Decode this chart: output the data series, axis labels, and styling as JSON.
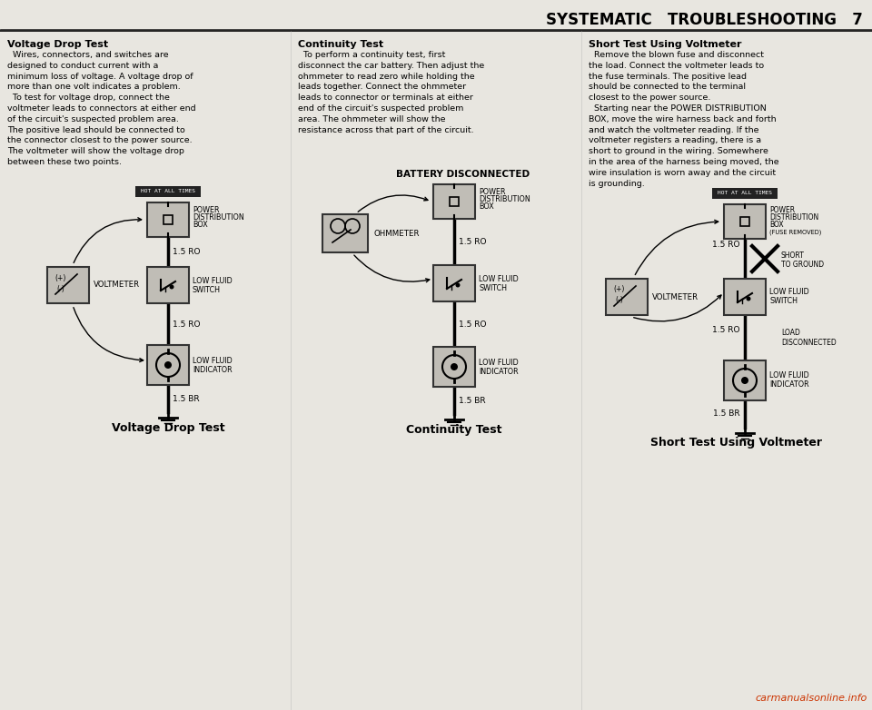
{
  "bg_color": "#e8e6e0",
  "title": "SYSTEMATIC   TROUBLESHOOTING   7",
  "col_titles": [
    "Voltage Drop Test",
    "Continuity Test",
    "Short Test Using Voltmeter"
  ],
  "body1": "  Wires, connectors, and switches are\ndesigned to conduct current with a\nminimum loss of voltage. A voltage drop of\nmore than one volt indicates a problem.\n  To test for voltage drop, connect the\nvoltmeter leads to connectors at either end\nof the circuit's suspected problem area.\nThe positive lead should be connected to\nthe connector closest to the power source.\nThe voltmeter will show the voltage drop\nbetween these two points.",
  "body2": "  To perform a continuity test, first\ndisconnect the car battery. Then adjust the\nohmmeter to read zero while holding the\nleads together. Connect the ohmmeter\nleads to connector or terminals at either\nend of the circuit's suspected problem\narea. The ohmmeter will show the\nresistance across that part of the circuit.",
  "body3": "  Remove the blown fuse and disconnect\nthe load. Connect the voltmeter leads to\nthe fuse terminals. The positive lead\nshould be connected to the terminal\nclosest to the power source.\n  Starting near the POWER DISTRIBUTION\nBOX, move the wire harness back and forth\nand watch the voltmeter reading. If the\nvoltmeter registers a reading, there is a\nshort to ground in the wiring. Somewhere\nin the area of the harness being moved, the\nwire insulation is worn away and the circuit\nis grounding.",
  "diag_labels": [
    "Voltage Drop Test",
    "Continuity Test",
    "Short Test Using Voltmeter"
  ],
  "battery_note": "BATTERY DISCONNECTED",
  "wire_labels": [
    "1.5 RO",
    "1.5 RO",
    "1.5 BR"
  ],
  "website": "carmanualsonline.info",
  "box_fill": "#c0bdb6",
  "box_edge": "#333333",
  "hot_fill": "#222222",
  "hot_text": "HOT AT ALL TIMES"
}
